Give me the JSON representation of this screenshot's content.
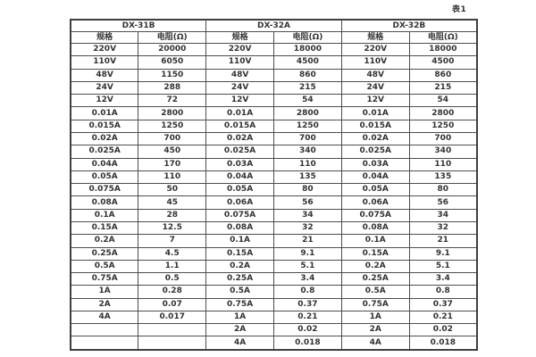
{
  "page": {
    "table_label": "表1"
  },
  "table": {
    "groups": [
      {
        "name": "DX-31B",
        "col_headers": [
          "规格",
          "电阻(Ω)"
        ],
        "rows": [
          [
            "220V",
            "20000"
          ],
          [
            "110V",
            "6050"
          ],
          [
            "48V",
            "1150"
          ],
          [
            "24V",
            "288"
          ],
          [
            "12V",
            "72"
          ],
          [
            "0.01A",
            "2800"
          ],
          [
            "0.015A",
            "1250"
          ],
          [
            "0.02A",
            "700"
          ],
          [
            "0.025A",
            "450"
          ],
          [
            "0.04A",
            "170"
          ],
          [
            "0.05A",
            "110"
          ],
          [
            "0.075A",
            "50"
          ],
          [
            "0.08A",
            "45"
          ],
          [
            "0.1A",
            "28"
          ],
          [
            "0.15A",
            "12.5"
          ],
          [
            "0.2A",
            "7"
          ],
          [
            "0.25A",
            "4.5"
          ],
          [
            "0.5A",
            "1.1"
          ],
          [
            "0.75A",
            "0.5"
          ],
          [
            "1A",
            "0.28"
          ],
          [
            "2A",
            "0.07"
          ],
          [
            "4A",
            "0.017"
          ],
          [
            "",
            ""
          ],
          [
            "",
            ""
          ]
        ]
      },
      {
        "name": "DX-32A",
        "col_headers": [
          "规格",
          "电阻(Ω)"
        ],
        "rows": [
          [
            "220V",
            "18000"
          ],
          [
            "110V",
            "4500"
          ],
          [
            "48V",
            "860"
          ],
          [
            "24V",
            "215"
          ],
          [
            "12V",
            "54"
          ],
          [
            "0.01A",
            "2800"
          ],
          [
            "0.015A",
            "1250"
          ],
          [
            "0.02A",
            "700"
          ],
          [
            "0.025A",
            "340"
          ],
          [
            "0.03A",
            "110"
          ],
          [
            "0.04A",
            "135"
          ],
          [
            "0.05A",
            "80"
          ],
          [
            "0.06A",
            "56"
          ],
          [
            "0.075A",
            "34"
          ],
          [
            "0.08A",
            "32"
          ],
          [
            "0.1A",
            "21"
          ],
          [
            "0.15A",
            "9.1"
          ],
          [
            "0.2A",
            "5.1"
          ],
          [
            "0.25A",
            "3.4"
          ],
          [
            "0.5A",
            "0.8"
          ],
          [
            "0.75A",
            "0.37"
          ],
          [
            "1A",
            "0.21"
          ],
          [
            "2A",
            "0.02"
          ],
          [
            "4A",
            "0.018"
          ]
        ]
      },
      {
        "name": "DX-32B",
        "col_headers": [
          "规格",
          "电阻(Ω)"
        ],
        "rows": [
          [
            "220V",
            "18000"
          ],
          [
            "110V",
            "4500"
          ],
          [
            "48V",
            "860"
          ],
          [
            "24V",
            "215"
          ],
          [
            "12V",
            "54"
          ],
          [
            "0.01A",
            "2800"
          ],
          [
            "0.015A",
            "1250"
          ],
          [
            "0.02A",
            "700"
          ],
          [
            "0.025A",
            "340"
          ],
          [
            "0.03A",
            "110"
          ],
          [
            "0.04A",
            "135"
          ],
          [
            "0.05A",
            "80"
          ],
          [
            "0.06A",
            "56"
          ],
          [
            "0.075A",
            "34"
          ],
          [
            "0.08A",
            "32"
          ],
          [
            "0.1A",
            "21"
          ],
          [
            "0.15A",
            "9.1"
          ],
          [
            "0.2A",
            "5.1"
          ],
          [
            "0.25A",
            "3.4"
          ],
          [
            "0.5A",
            "0.8"
          ],
          [
            "0.75A",
            "0.37"
          ],
          [
            "1A",
            "0.21"
          ],
          [
            "2A",
            "0.02"
          ],
          [
            "4A",
            "0.018"
          ]
        ]
      }
    ]
  }
}
